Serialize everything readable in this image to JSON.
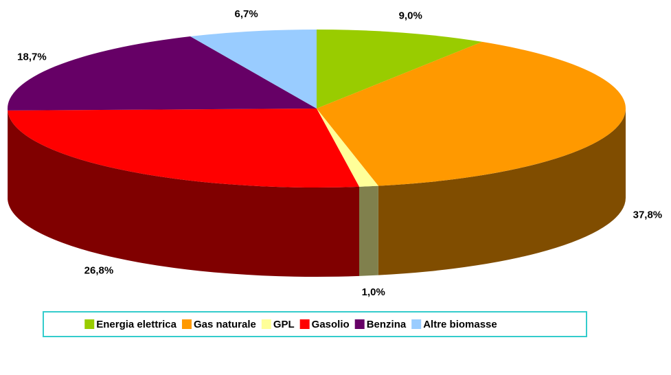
{
  "chart_data": {
    "type": "pie3d",
    "categories": [
      "Energia elettrica",
      "Gas naturale",
      "GPL",
      "Gasolio",
      "Benzina",
      "Altre biomasse"
    ],
    "values": [
      9.0,
      37.8,
      1.0,
      26.8,
      18.7,
      6.7
    ],
    "value_labels": [
      "9,0%",
      "37,8%",
      "1,0%",
      "26,8%",
      "18,7%",
      "6,7%"
    ],
    "colors": [
      "#99cc00",
      "#ff9900",
      "#ffff99",
      "#ff0000",
      "#660066",
      "#99ccff"
    ],
    "legend": "bottom"
  }
}
